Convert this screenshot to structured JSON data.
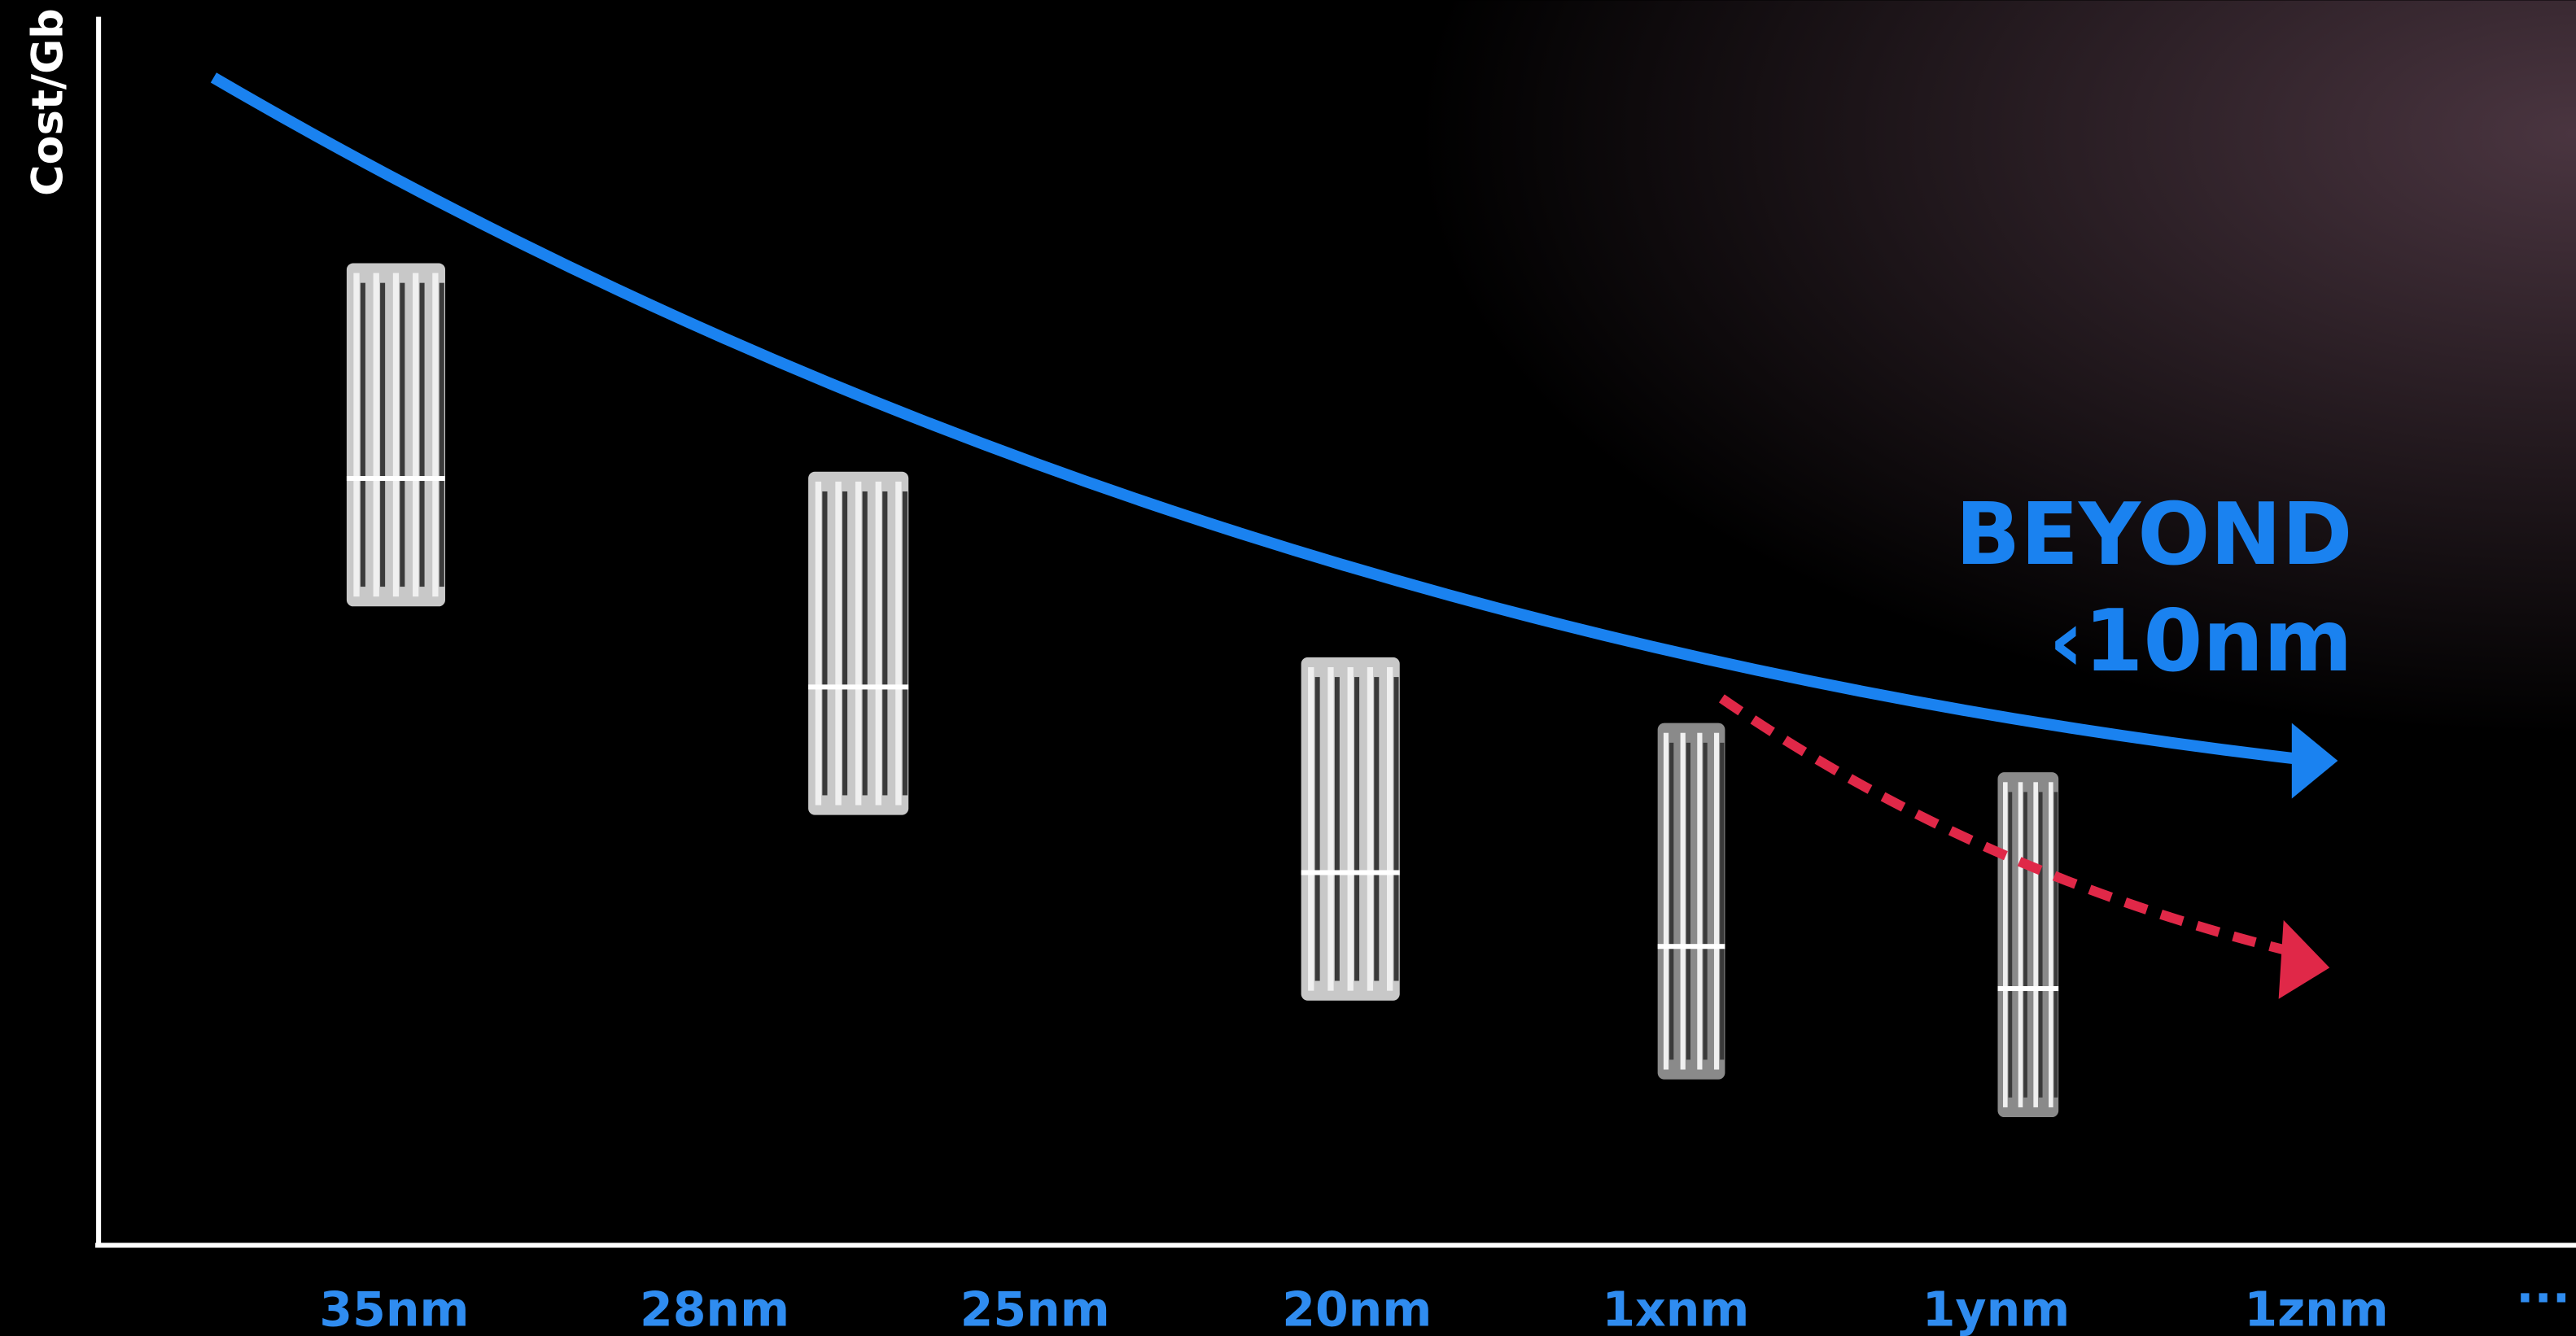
{
  "axis_label": "Cost/Gb",
  "categories": [
    "35nm",
    "28nm",
    "25nm",
    "20nm",
    "1xnm",
    "1ynm",
    "1znm"
  ],
  "ellipsis": "···",
  "annotation": {
    "line1": "BEYOND",
    "line2": "‹10nm"
  }
}
